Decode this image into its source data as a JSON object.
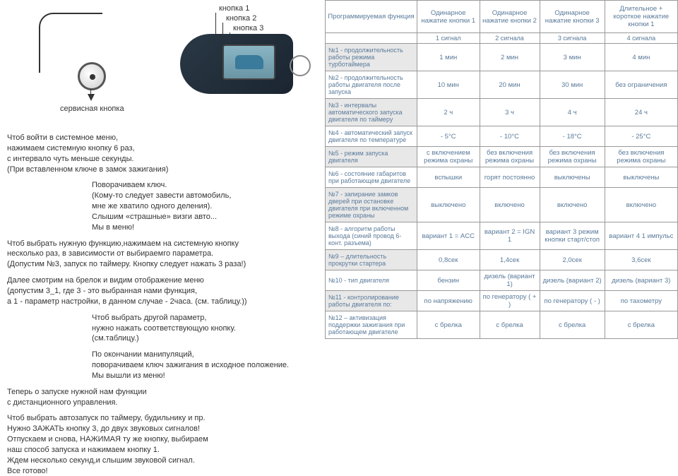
{
  "diagram": {
    "service_button": "сервисная кнопка",
    "btn1": "кнопка 1",
    "btn2": "кнопка 2",
    "btn3": "кнопка 3"
  },
  "instructions": {
    "p1": "Чтоб войти в системное меню,\nнажимаем системную кнопку 6 раз,\nс интервало чуть меньше секунды.\n(При вставленном ключе в замок зажигания)",
    "p2": "Поворачиваем ключ.\n(Кому-то следует завести автомобиль,\nмне же хватило одного деления).\nСлышим «страшные» визги авто...\nМы в меню!",
    "p3": "Чтоб выбрать нужную функцию,нажимаем на системную кнопку\nнесколько раз, в зависимости от выбираемго параметра.\n(Допустим №3, запуск по таймеру. Кнопку следует нажать 3 раза!)",
    "p4": "Далее смотрим на брелок и видим отображение меню\n(допустим 3_1, где 3 - это выбранная нами функция,\nа 1 - параметр настройки, в данном случае - 2часа. (см. таблицу.))",
    "p5": "Чтоб выбрать другой параметр,\nнужно нажать соответствующую кнопку.\n(см.таблицу.)",
    "p6": "По окончании манипуляций,\nповорачиваем ключ зажигания в исходное положение.\nМы вышли из меню!",
    "p7": "Теперь о запуске нужной нам функции\nс дистанционного управления.",
    "p8": "Чтоб выбрать автозапуск по таймеру, будильнику и пр.\nНужно ЗАЖАТЬ кнопку 3, до двух звуковых сигналов!\nОтпускаем и снова, НАЖИМАЯ ту же кнопку, выбираем\nнаш способ запуска и нажимаем кнопку 1.\nЖдем несколько секунд,и слышим звуковой сигнал.\nВсе готово!"
  },
  "table": {
    "headers": {
      "func": "Программируемая функция",
      "c1": "Одинарное нажатие кнопки 1",
      "c2": "Одинарное нажатие кнопки 2",
      "c3": "Одинарное нажатие кнопки 3",
      "c4": "Длительное + короткое нажатие кнопки 1",
      "s1": "1 сигнал",
      "s2": "2 сигнала",
      "s3": "3 сигнала",
      "s4": "4 сигнала"
    },
    "rows": [
      {
        "f": "№1 - продолжительность работы режима турботаймера",
        "v": [
          "1 мин",
          "2 мин",
          "3 мин",
          "4 мин"
        ]
      },
      {
        "f": "№2 - продолжительность работы двигателя после запуска",
        "v": [
          "10 мин",
          "20 мин",
          "30 мин",
          "без ограничения"
        ]
      },
      {
        "f": "№3 - интервалы автоматического запуска двигателя по таймеру",
        "v": [
          "2 ч",
          "3 ч",
          "4 ч",
          "24 ч"
        ]
      },
      {
        "f": "№4 - автоматический запуск двигателя по температуре",
        "v": [
          "- 5°C",
          "- 10°C",
          "- 18°C",
          "- 25°C"
        ]
      },
      {
        "f": "№5 - режим запуска двигателя",
        "v": [
          "с включением режима охраны",
          "без включения режима охраны",
          "без включения режима охраны",
          "без включения режима охраны"
        ]
      },
      {
        "f": "№6 - состояние габаритов при работающем двигателе",
        "v": [
          "вспышки",
          "горят постоянно",
          "выключены",
          "выключены"
        ]
      },
      {
        "f": "№7 - запирание замков дверей при остановке двигателя при включенном режиме охраны",
        "v": [
          "выключено",
          "включено",
          "включено",
          "включено"
        ]
      },
      {
        "f": "№8 - алгоритм работы выхода (синий провод 6-конт. разъема)",
        "v": [
          "вариант 1 = ACC",
          "вариант 2 = IGN 1",
          "вариант 3 режим кнопки старт/стоп",
          "вариант 4 1 импульс"
        ]
      },
      {
        "f": "№9 – длительность прокрутки стартера",
        "v": [
          "0,8сек",
          "1,4сек",
          "2,0сек",
          "3,6сек"
        ]
      },
      {
        "f": "№10 - тип двигателя",
        "v": [
          "бензин",
          "дизель (вариант 1)",
          "дизель (вариант 2)",
          "дизель (вариант 3)"
        ]
      },
      {
        "f": "№11 - контролирование работы двигателя по:",
        "v": [
          "по напряжению",
          "по генератору ( + )",
          "по генератору ( - )",
          "по тахометру"
        ]
      },
      {
        "f": "№12 – активизация поддержки зажигания при работающем двигателе",
        "v": [
          "с брелка",
          "с брелка",
          "с брелка",
          "с брелка"
        ]
      }
    ]
  },
  "style": {
    "table_header_color": "#5a7a9a",
    "table_border_color": "#999999",
    "alt_bg": "#e8e8e8"
  }
}
